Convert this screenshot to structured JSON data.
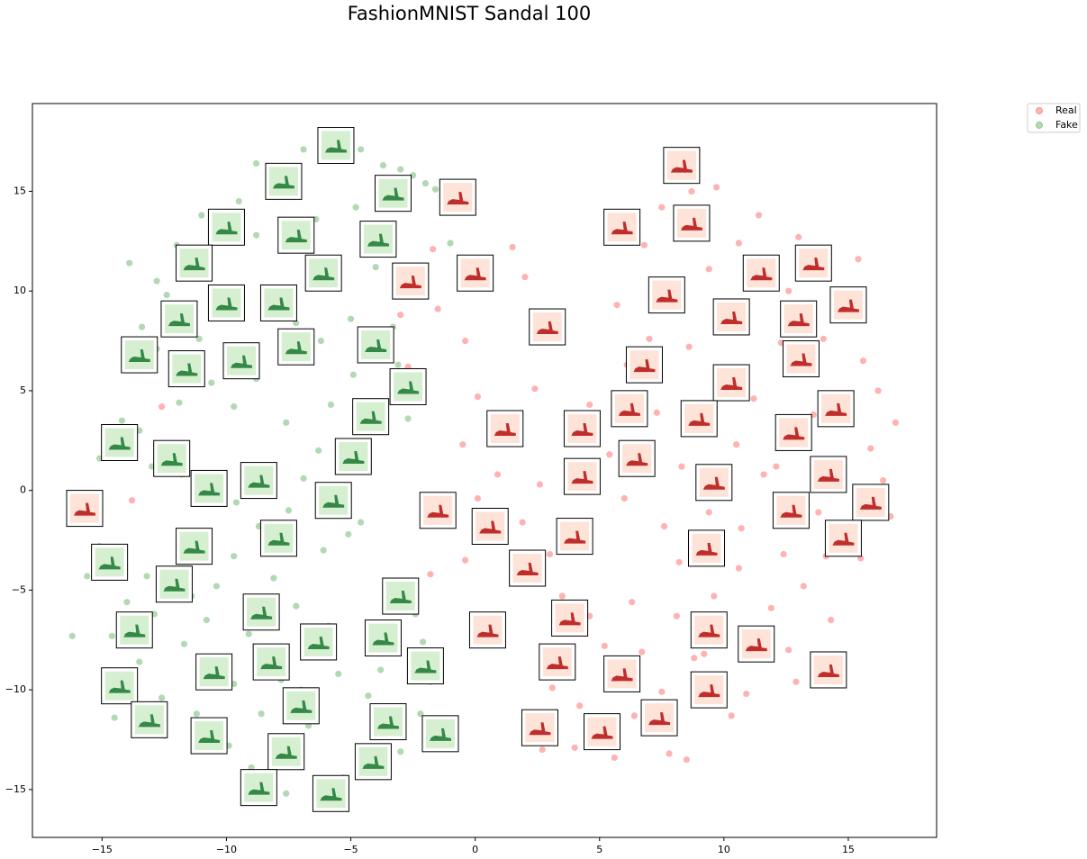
{
  "chart_data": {
    "type": "scatter",
    "title": "FashionMNIST Sandal 100",
    "xlim": [
      -17.8,
      18.55
    ],
    "ylim": [
      -17.4,
      19.4
    ],
    "xticks": [
      {
        "value": -15,
        "label": "−15"
      },
      {
        "value": -10,
        "label": "−10"
      },
      {
        "value": -5,
        "label": "−5"
      },
      0,
      5,
      10,
      15
    ],
    "yticks": [
      {
        "value": -15,
        "label": "−15"
      },
      {
        "value": -10,
        "label": "−10"
      },
      {
        "value": -5,
        "label": "−5"
      },
      0,
      5,
      10,
      15
    ],
    "alpha": 0.3,
    "legend": "outside-upper-right",
    "series": [
      {
        "name": "Real",
        "color": "#ff0000",
        "thumbnail_fill": "#fde3d8",
        "thumbnail_ink": "#b50e0e",
        "x": [
          -12.6,
          -13.8,
          -1.7,
          -1.5,
          -2.7,
          -0.4,
          1.5,
          2,
          -3,
          0.1,
          -0.5,
          0.9,
          -0.4,
          -1.8,
          0.1,
          1.9,
          2.4,
          2.6,
          3,
          3.5,
          4.6,
          5.6,
          4.2,
          3.1,
          2.7,
          4,
          5.6,
          6.4,
          7.5,
          7.8,
          8.5,
          6.7,
          6.3,
          8.1,
          9.2,
          10.3,
          10.9,
          11.3,
          12.6,
          12.9,
          11.9,
          13.2,
          14.1,
          14.3,
          12.4,
          10.6,
          9.6,
          8.2,
          7.6,
          6,
          5.4,
          4.6,
          6.1,
          7,
          7.9,
          9.4,
          10.6,
          11.4,
          9.7,
          8.7,
          7.5,
          6.8,
          5.7,
          8.6,
          10.2,
          11.2,
          12.3,
          14,
          15.6,
          16.2,
          16.9,
          15.9,
          16.4,
          16.7,
          15.5,
          13.8,
          11.6,
          10.5,
          9.4,
          8.3,
          7.3,
          13.6,
          12.6,
          14.2,
          15.4,
          13,
          12.1,
          10.7,
          8.8,
          5.2
        ],
        "values": [
          4.2,
          -0.5,
          12.1,
          9.1,
          6.2,
          7.5,
          12.2,
          10.7,
          8.8,
          4.7,
          2.3,
          0.8,
          -3.5,
          -4.2,
          -0.4,
          -1.6,
          5.1,
          0.3,
          -3.2,
          -5.3,
          -6.3,
          -9.5,
          -10.8,
          -9.9,
          -13,
          -12.9,
          -13.4,
          -11.3,
          -10.1,
          -13.2,
          -13.5,
          -8.1,
          -5.6,
          -6.3,
          -8.2,
          -11.3,
          -10.2,
          -8.4,
          -8,
          -9.6,
          -5.9,
          -4.8,
          -3.3,
          -6.5,
          -3.2,
          -3.9,
          -5.3,
          -3.6,
          -1.8,
          -0.4,
          1.8,
          4.3,
          6.3,
          7.6,
          9.1,
          11.1,
          12.4,
          13.8,
          15.2,
          15,
          14.2,
          12.3,
          9.3,
          7.2,
          6.1,
          4.6,
          7.4,
          7.6,
          6.5,
          5,
          3.4,
          2.1,
          0.5,
          -1.3,
          -3.4,
          -1.1,
          0.8,
          2.3,
          -1.1,
          1.2,
          3.9,
          3.8,
          10,
          11.2,
          11.6,
          12.7,
          1.2,
          -1.9,
          -8.4,
          -7.8
        ],
        "thumbnails_x": [
          -15.7,
          -0.7,
          8.3,
          5.9,
          8.7,
          -2.6,
          0,
          13.6,
          11.5,
          15,
          7.7,
          10.3,
          13,
          2.9,
          13.1,
          6.8,
          10.3,
          14.5,
          6.2,
          9,
          1.2,
          4.3,
          12.8,
          6.5,
          4.3,
          14.2,
          9.6,
          15.9,
          -1.5,
          12.7,
          0.6,
          4,
          14.8,
          9.3,
          2.1,
          3.8,
          0.5,
          9.4,
          11.3,
          3.3,
          5.9,
          14.2,
          9.4,
          7.4,
          2.6,
          5.1
        ],
        "thumbnails_y": [
          -0.9,
          14.7,
          16.3,
          13.2,
          13.4,
          10.5,
          10.9,
          11.4,
          10.9,
          9.3,
          9.8,
          8.7,
          8.6,
          8.2,
          6.6,
          6.3,
          5.4,
          4.1,
          4.1,
          3.6,
          3.1,
          3.1,
          2.9,
          1.6,
          0.7,
          0.8,
          0.4,
          -0.6,
          -1,
          -1,
          -1.8,
          -2.3,
          -2.4,
          -2.9,
          -3.9,
          -6.4,
          -7,
          -7,
          -7.7,
          -8.6,
          -9.2,
          -9,
          -10,
          -11.4,
          -11.9,
          -12.1
        ]
      },
      {
        "name": "Fake",
        "color": "#008000",
        "thumbnail_fill": "#d6efd0",
        "thumbnail_ink": "#17772f",
        "x": [
          -13.9,
          -12.8,
          -12,
          -11,
          -9.5,
          -8.8,
          -8,
          -6.9,
          -5.8,
          -4.6,
          -3.7,
          -3,
          -2.5,
          -2,
          -1.6,
          -4.8,
          -6.4,
          -8.8,
          -10.7,
          -12.4,
          -13.4,
          -12.8,
          -11.1,
          -10.6,
          -9.7,
          -8.8,
          -7.2,
          -6.2,
          -5,
          -3.3,
          -3.1,
          -4.9,
          -5.8,
          -6.3,
          -6.9,
          -7.5,
          -8.7,
          -9.6,
          -11.8,
          -13,
          -14.2,
          -13.5,
          -15.1,
          -6.1,
          -4.6,
          -5.1,
          -2.4,
          -2.1,
          -1.8,
          -2.2,
          -3,
          -4.3,
          -5.3,
          -6.3,
          -7.6,
          -9,
          -9.9,
          -11.2,
          -12.6,
          -13.5,
          -14.6,
          -15.6,
          -15.1,
          -14,
          -12.9,
          -11.7,
          -10.8,
          -9.1,
          -7.8,
          -7,
          -6.7,
          -5.5,
          -4.3,
          -3.8,
          -8.1,
          -9.7,
          -10.4,
          -11.4,
          -13.2,
          -14.5,
          -16.2,
          -7.2,
          -5.9,
          -3.6,
          -12.5,
          -9.7,
          -14.8,
          -8.6,
          -1,
          -6.2,
          -8.3,
          -4,
          -11.9,
          -7.6,
          -3.6,
          -2.7
        ],
        "values": [
          11.4,
          10.5,
          12.3,
          13.8,
          14.5,
          16.4,
          16.2,
          17.1,
          16.8,
          17.1,
          16.3,
          16.1,
          15.8,
          15.4,
          15.1,
          14.2,
          13.6,
          12.8,
          11.9,
          9.8,
          8.2,
          7.1,
          7.6,
          5.4,
          4.2,
          5.6,
          8.4,
          7.5,
          8.6,
          8.2,
          6.3,
          5.8,
          4.3,
          2,
          0.6,
          -1,
          -1.8,
          -0.6,
          0.8,
          1.2,
          3.5,
          3,
          1.6,
          -3,
          -1.6,
          -2.2,
          -6.2,
          -7.6,
          -9.6,
          -11.2,
          -13.1,
          -14.2,
          -14.4,
          -15.5,
          -15.2,
          -13.9,
          -12.8,
          -11.2,
          -10.4,
          -8.6,
          -7.3,
          -4.3,
          -2.8,
          -5.6,
          -6.2,
          -7.7,
          -6.5,
          -7.2,
          -9.5,
          -10,
          -11.8,
          -9.2,
          -10.3,
          -9,
          -4.4,
          -3.3,
          -4.8,
          -5.3,
          -4.3,
          -11.4,
          -7.3,
          -5.8,
          -6.8,
          -4.6,
          -12.3,
          -9.7,
          -9.3,
          -11.2,
          12.4,
          10.2,
          9.2,
          11.2,
          4.4,
          3.4,
          3.2,
          3.6
        ],
        "thumbnails_x": [
          -5.6,
          -7.7,
          -3.3,
          -10,
          -7.2,
          -3.9,
          -11.3,
          -6.1,
          -10,
          -7.9,
          -11.9,
          -13.5,
          -11.6,
          -9.4,
          -7.2,
          -4,
          -2.7,
          -4.2,
          -4.9,
          -14.3,
          -12.2,
          -10.7,
          -8.7,
          -5.7,
          -7.9,
          -11.3,
          -14.7,
          -12.1,
          -3,
          -8.6,
          -13.7,
          -6.3,
          -3.7,
          -8.2,
          -2,
          -10.5,
          -14.3,
          -7,
          -13.1,
          -3.5,
          -10.7,
          -1.4,
          -7.6,
          -4.1,
          -8.7,
          -5.8
        ],
        "thumbnails_y": [
          17.3,
          15.5,
          14.9,
          13.2,
          12.8,
          12.6,
          11.4,
          10.9,
          9.4,
          9.4,
          8.6,
          6.8,
          6.1,
          6.5,
          7.2,
          7.3,
          5.2,
          3.7,
          1.7,
          2.4,
          1.6,
          0.1,
          0.5,
          -0.5,
          -2.4,
          -2.8,
          -3.6,
          -4.7,
          -5.3,
          -6.1,
          -7,
          -7.6,
          -7.4,
          -8.6,
          -8.8,
          -9.1,
          -9.8,
          -10.8,
          -11.5,
          -11.6,
          -12.3,
          -12.2,
          -13.1,
          -13.6,
          -14.9,
          -15.2
        ]
      }
    ]
  }
}
